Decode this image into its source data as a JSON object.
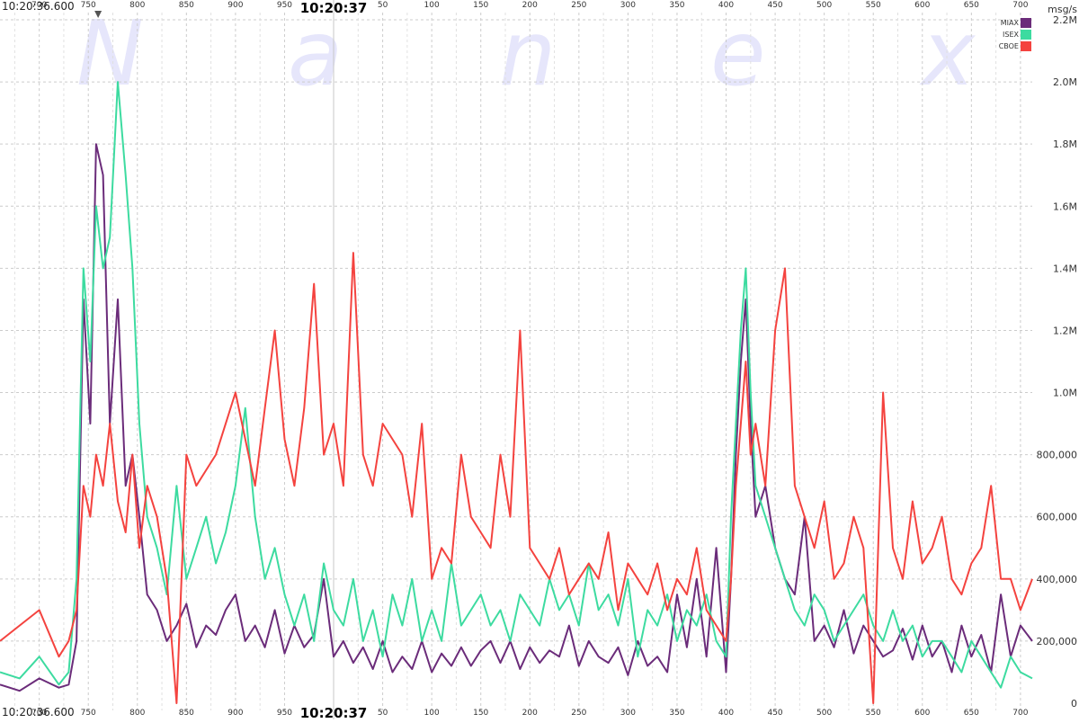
{
  "chart_data": {
    "type": "line",
    "watermark": [
      "N",
      "a",
      "n",
      "e",
      "x"
    ],
    "unit_label": "msg/s",
    "start_time_label": "10:20:36.600",
    "mid_time_label": "10:20:37",
    "x_tick_labels": [
      "700",
      "750",
      "800",
      "850",
      "900",
      "950",
      "50",
      "100",
      "150",
      "200",
      "250",
      "300",
      "350",
      "400",
      "450",
      "500",
      "550",
      "600",
      "650",
      "700"
    ],
    "y_tick_labels": [
      "0",
      "200,000",
      "400,000",
      "600,000",
      "800,000",
      "1.0M",
      "1.2M",
      "1.4M",
      "1.6M",
      "1.8M",
      "2.0M",
      "2.2M"
    ],
    "y_tick_values": [
      0,
      200000,
      400000,
      600000,
      800000,
      1000000,
      1200000,
      1400000,
      1600000,
      1800000,
      2000000,
      2200000
    ],
    "ylim": [
      0,
      2200000
    ],
    "x_ms_range": [
      660,
      1712
    ],
    "grid": true,
    "legend_position": "top-right",
    "series": [
      {
        "name": "MIAX",
        "color": "#6b2c7a",
        "x": [
          660,
          680,
          700,
          720,
          730,
          738,
          745,
          752,
          758,
          765,
          772,
          780,
          788,
          795,
          802,
          810,
          820,
          830,
          840,
          850,
          860,
          870,
          880,
          890,
          900,
          910,
          920,
          930,
          940,
          950,
          960,
          970,
          980,
          990,
          1000,
          1010,
          1020,
          1030,
          1040,
          1050,
          1060,
          1070,
          1080,
          1090,
          1100,
          1110,
          1120,
          1130,
          1140,
          1150,
          1160,
          1170,
          1180,
          1190,
          1200,
          1210,
          1220,
          1230,
          1240,
          1250,
          1260,
          1270,
          1280,
          1290,
          1300,
          1310,
          1320,
          1330,
          1340,
          1350,
          1360,
          1370,
          1380,
          1390,
          1400,
          1405,
          1410,
          1415,
          1420,
          1425,
          1430,
          1440,
          1450,
          1460,
          1470,
          1480,
          1490,
          1500,
          1510,
          1520,
          1530,
          1540,
          1550,
          1560,
          1570,
          1580,
          1590,
          1600,
          1610,
          1620,
          1630,
          1640,
          1650,
          1660,
          1670,
          1680,
          1690,
          1700,
          1712
        ],
        "y": [
          60000,
          40000,
          80000,
          50000,
          60000,
          200000,
          1300000,
          900000,
          1800000,
          1700000,
          900000,
          1300000,
          700000,
          800000,
          600000,
          350000,
          300000,
          200000,
          250000,
          320000,
          180000,
          250000,
          220000,
          300000,
          350000,
          200000,
          250000,
          180000,
          300000,
          160000,
          250000,
          180000,
          220000,
          400000,
          150000,
          200000,
          130000,
          180000,
          110000,
          200000,
          100000,
          150000,
          110000,
          200000,
          100000,
          160000,
          120000,
          180000,
          120000,
          170000,
          200000,
          130000,
          200000,
          110000,
          180000,
          130000,
          170000,
          150000,
          250000,
          120000,
          200000,
          150000,
          130000,
          180000,
          90000,
          200000,
          120000,
          150000,
          100000,
          350000,
          180000,
          400000,
          150000,
          500000,
          100000,
          400000,
          800000,
          1100000,
          1300000,
          900000,
          600000,
          700000,
          500000,
          400000,
          350000,
          600000,
          200000,
          250000,
          180000,
          300000,
          160000,
          250000,
          200000,
          150000,
          170000,
          240000,
          140000,
          250000,
          150000,
          200000,
          100000,
          250000,
          150000,
          220000,
          100000,
          350000,
          150000,
          250000,
          200000
        ]
      },
      {
        "name": "ISEX",
        "color": "#3ddba0",
        "x": [
          660,
          680,
          700,
          720,
          730,
          738,
          745,
          752,
          758,
          765,
          772,
          780,
          788,
          795,
          802,
          810,
          820,
          830,
          840,
          850,
          860,
          870,
          880,
          890,
          900,
          910,
          920,
          930,
          940,
          950,
          960,
          970,
          980,
          990,
          1000,
          1010,
          1020,
          1030,
          1040,
          1050,
          1060,
          1070,
          1080,
          1090,
          1100,
          1110,
          1120,
          1130,
          1140,
          1150,
          1160,
          1170,
          1180,
          1190,
          1200,
          1210,
          1220,
          1230,
          1240,
          1250,
          1260,
          1270,
          1280,
          1290,
          1300,
          1310,
          1320,
          1330,
          1340,
          1350,
          1360,
          1370,
          1380,
          1390,
          1400,
          1405,
          1410,
          1415,
          1420,
          1425,
          1430,
          1440,
          1450,
          1460,
          1470,
          1480,
          1490,
          1500,
          1510,
          1520,
          1530,
          1540,
          1550,
          1560,
          1570,
          1580,
          1590,
          1600,
          1610,
          1620,
          1630,
          1640,
          1650,
          1660,
          1670,
          1680,
          1690,
          1700,
          1712
        ],
        "y": [
          100000,
          80000,
          150000,
          60000,
          100000,
          400000,
          1400000,
          1100000,
          1600000,
          1400000,
          1500000,
          2000000,
          1700000,
          1400000,
          900000,
          600000,
          500000,
          350000,
          700000,
          400000,
          500000,
          600000,
          450000,
          550000,
          700000,
          950000,
          600000,
          400000,
          500000,
          350000,
          250000,
          350000,
          200000,
          450000,
          300000,
          250000,
          400000,
          200000,
          300000,
          150000,
          350000,
          250000,
          400000,
          200000,
          300000,
          200000,
          450000,
          250000,
          300000,
          350000,
          250000,
          300000,
          200000,
          350000,
          300000,
          250000,
          400000,
          300000,
          350000,
          250000,
          450000,
          300000,
          350000,
          250000,
          400000,
          150000,
          300000,
          250000,
          350000,
          200000,
          300000,
          250000,
          350000,
          200000,
          150000,
          600000,
          900000,
          1200000,
          1400000,
          1000000,
          700000,
          600000,
          500000,
          400000,
          300000,
          250000,
          350000,
          300000,
          200000,
          250000,
          300000,
          350000,
          250000,
          200000,
          300000,
          200000,
          250000,
          150000,
          200000,
          200000,
          150000,
          100000,
          200000,
          150000,
          100000,
          50000,
          150000,
          100000,
          80000
        ]
      },
      {
        "name": "CBOE",
        "color": "#f4433f",
        "x": [
          660,
          680,
          700,
          720,
          730,
          738,
          745,
          752,
          758,
          765,
          772,
          780,
          788,
          795,
          802,
          810,
          820,
          830,
          840,
          850,
          860,
          870,
          880,
          890,
          900,
          910,
          920,
          930,
          940,
          950,
          960,
          970,
          980,
          990,
          1000,
          1010,
          1020,
          1030,
          1040,
          1050,
          1060,
          1070,
          1080,
          1090,
          1100,
          1110,
          1120,
          1130,
          1140,
          1150,
          1160,
          1170,
          1180,
          1190,
          1200,
          1210,
          1220,
          1230,
          1240,
          1250,
          1260,
          1270,
          1280,
          1290,
          1300,
          1310,
          1320,
          1330,
          1340,
          1350,
          1360,
          1370,
          1380,
          1390,
          1400,
          1405,
          1410,
          1415,
          1420,
          1425,
          1430,
          1440,
          1450,
          1460,
          1470,
          1480,
          1490,
          1500,
          1510,
          1520,
          1530,
          1540,
          1550,
          1560,
          1570,
          1580,
          1590,
          1600,
          1610,
          1620,
          1630,
          1640,
          1650,
          1660,
          1670,
          1680,
          1690,
          1700,
          1712
        ],
        "y": [
          200000,
          250000,
          300000,
          150000,
          200000,
          300000,
          700000,
          600000,
          800000,
          700000,
          900000,
          650000,
          550000,
          800000,
          500000,
          700000,
          600000,
          400000,
          0,
          800000,
          700000,
          750000,
          800000,
          900000,
          1000000,
          850000,
          700000,
          950000,
          1200000,
          850000,
          700000,
          950000,
          1350000,
          800000,
          900000,
          700000,
          1450000,
          800000,
          700000,
          900000,
          850000,
          800000,
          600000,
          900000,
          400000,
          500000,
          450000,
          800000,
          600000,
          550000,
          500000,
          800000,
          600000,
          1200000,
          500000,
          450000,
          400000,
          500000,
          350000,
          400000,
          450000,
          400000,
          550000,
          300000,
          450000,
          400000,
          350000,
          450000,
          300000,
          400000,
          350000,
          500000,
          300000,
          250000,
          200000,
          400000,
          700000,
          900000,
          1100000,
          800000,
          900000,
          700000,
          1200000,
          1400000,
          700000,
          600000,
          500000,
          650000,
          400000,
          450000,
          600000,
          500000,
          0,
          1000000,
          500000,
          400000,
          650000,
          450000,
          500000,
          600000,
          400000,
          350000,
          450000,
          500000,
          700000,
          400000,
          400000,
          300000,
          400000
        ]
      }
    ]
  }
}
